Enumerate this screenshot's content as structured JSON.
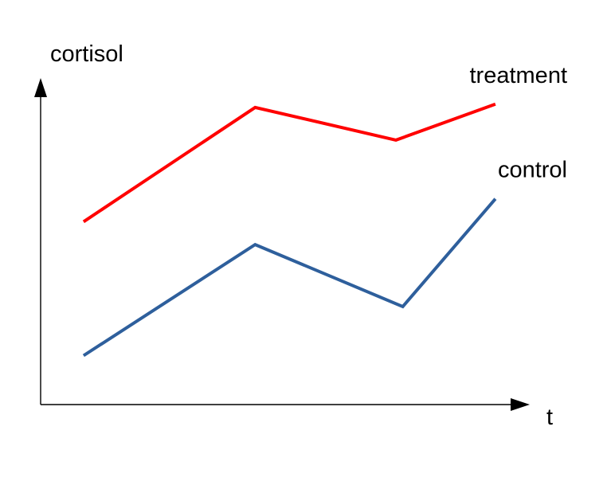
{
  "chart_data": {
    "type": "line",
    "xlabel": "t",
    "ylabel": "cortisol",
    "x": [
      0,
      1,
      2,
      2.4
    ],
    "xlim": [
      -0.25,
      2.6
    ],
    "ylim": [
      0,
      1
    ],
    "grid": false,
    "legend": "none (series labelled directly at right end of lines)",
    "series": [
      {
        "name": "treatment",
        "color": "#ff0000",
        "points": [
          [
            0,
            0.56
          ],
          [
            1,
            0.91
          ],
          [
            1.82,
            0.81
          ],
          [
            2.4,
            0.92
          ]
        ]
      },
      {
        "name": "control",
        "color": "#2e5f9c",
        "points": [
          [
            0,
            0.15
          ],
          [
            1,
            0.49
          ],
          [
            1.86,
            0.3
          ],
          [
            2.4,
            0.63
          ]
        ]
      }
    ]
  }
}
